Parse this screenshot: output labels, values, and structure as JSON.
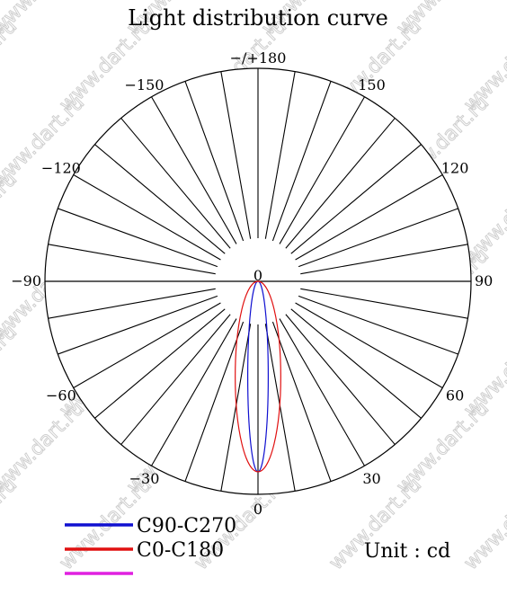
{
  "chart_data": {
    "type": "polar",
    "title": "Light distribution curve",
    "unit": "Unit : cd",
    "angle_labels": [
      {
        "deg": 180,
        "text": "−/+180"
      },
      {
        "deg": 150,
        "text": "150"
      },
      {
        "deg": -150,
        "text": "−150"
      },
      {
        "deg": 120,
        "text": "120"
      },
      {
        "deg": -120,
        "text": "−120"
      },
      {
        "deg": 90,
        "text": "90"
      },
      {
        "deg": -90,
        "text": "−90"
      },
      {
        "deg": 60,
        "text": "60"
      },
      {
        "deg": -60,
        "text": "−60"
      },
      {
        "deg": 30,
        "text": "30"
      },
      {
        "deg": -30,
        "text": "−30"
      },
      {
        "deg": 0,
        "text": "0"
      }
    ],
    "center_label": "0",
    "series": [
      {
        "name": "C90-C270",
        "color": "#1010d0",
        "half_width_deg": 5,
        "peak": 1.0
      },
      {
        "name": "C0-C180",
        "color": "#e01010",
        "half_width_deg": 11,
        "peak": 1.0
      },
      {
        "name": "",
        "color": "#e020e0",
        "half_width_deg": 0,
        "peak": 0
      }
    ],
    "legend_position": "bottom-left",
    "watermark": "www.dart.ru"
  }
}
